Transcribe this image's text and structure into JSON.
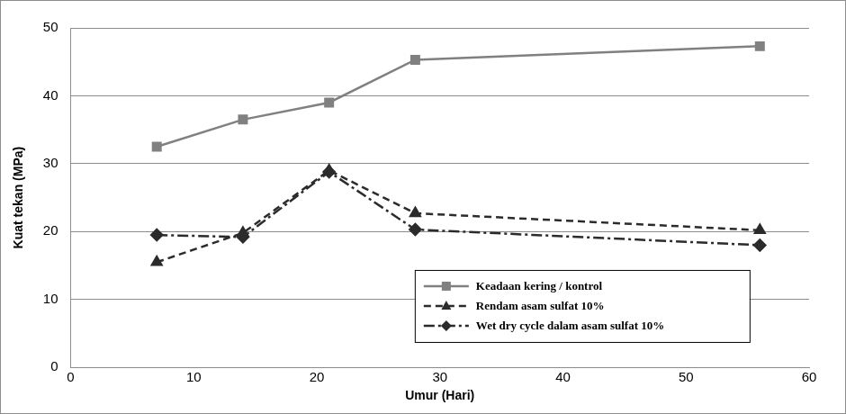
{
  "chart_data": {
    "type": "line",
    "x_label": "Umur (Hari)",
    "y_label": "Kuat tekan (MPa)",
    "x": [
      7,
      14,
      21,
      28,
      56
    ],
    "series": [
      {
        "name": "Keadaan kering / kontrol",
        "color": "#808080",
        "marker": "square",
        "line_style": "solid",
        "values": [
          32.5,
          36.5,
          39,
          45.3,
          47.3
        ]
      },
      {
        "name": "Rendam asam sulfat 10%",
        "color": "#2b2b2b",
        "marker": "triangle",
        "line_style": "dashed",
        "values": [
          15.5,
          19.8,
          29,
          22.7,
          20.2
        ]
      },
      {
        "name": "Wet dry cycle dalam asam sulfat 10%",
        "color": "#2b2b2b",
        "marker": "diamond",
        "line_style": "dashdot",
        "values": [
          19.5,
          19.2,
          28.8,
          20.3,
          18
        ]
      }
    ],
    "xlim": [
      0,
      60
    ],
    "xticks": [
      0,
      10,
      20,
      30,
      40,
      50,
      60
    ],
    "ylim": [
      0,
      50
    ],
    "yticks": [
      0,
      10,
      20,
      30,
      40,
      50
    ],
    "grid": "y",
    "legend": "lower right"
  }
}
